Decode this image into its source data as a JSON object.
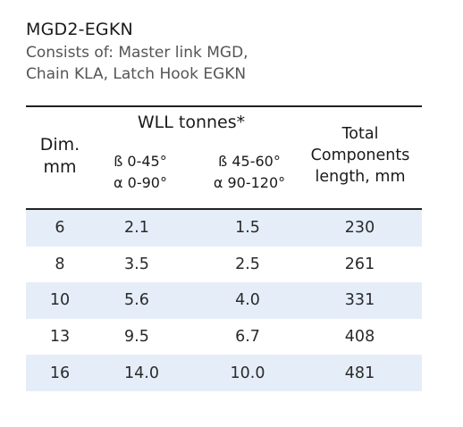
{
  "product": {
    "code": "MGD2-EGKN",
    "description_lines": [
      "Consists of: Master link MGD,",
      "Chain KLA, Latch Hook EGKN"
    ]
  },
  "table": {
    "headers": {
      "dim_line1": "Dim.",
      "dim_line2": "mm",
      "wll": "WLL tonnes*",
      "wll_sub1_line1": "ß 0-45°",
      "wll_sub1_line2": "α 0-90°",
      "wll_sub2_line1": "ß 45-60°",
      "wll_sub2_line2": "α 90-120°",
      "total_line1": "Total",
      "total_line2": "Components",
      "total_line3": "length, mm"
    },
    "rows": [
      {
        "dim": "6",
        "wll1": "2.1",
        "wll2": "1.5",
        "length": "230"
      },
      {
        "dim": "8",
        "wll1": "3.5",
        "wll2": "2.5",
        "length": "261"
      },
      {
        "dim": "10",
        "wll1": "5.6",
        "wll2": "4.0",
        "length": "331"
      },
      {
        "dim": "13",
        "wll1": "9.5",
        "wll2": "6.7",
        "length": "408"
      },
      {
        "dim": "16",
        "wll1": "14.0",
        "wll2": "10.0",
        "length": "481"
      }
    ]
  },
  "colors": {
    "row_shade": "#e5eef8",
    "rule": "#222222",
    "subtitle_text": "#555555"
  }
}
